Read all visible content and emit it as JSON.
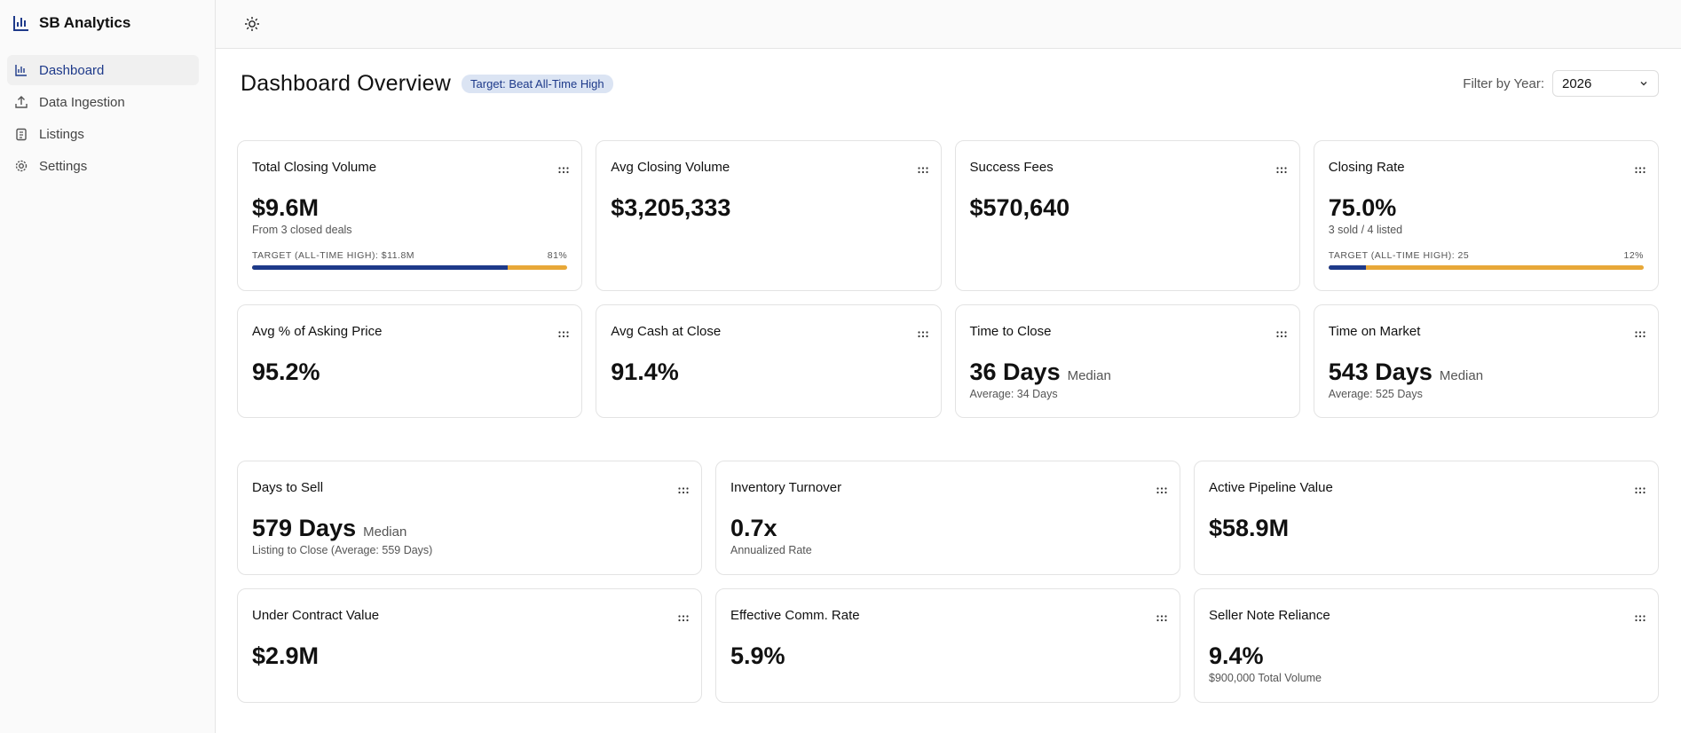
{
  "sidebar": {
    "brand": "SB Analytics",
    "nav": [
      "Dashboard",
      "Data Ingestion",
      "Listings",
      "Settings"
    ]
  },
  "header": {
    "title": "Dashboard Overview",
    "badge": "Target: Beat All-Time High",
    "filter_label": "Filter by Year:",
    "year": "2026"
  },
  "sections": [
    {
      "cards": [
        {
          "title": "Total Closing Volume",
          "value": "$9.6M",
          "sub": "From 3 closed deals",
          "target": "TARGET (ALL-TIME HIGH): $11.8M",
          "progress": 81,
          "progress_label": "81%"
        },
        {
          "title": "Avg Closing Volume",
          "value": "$3,205,333"
        },
        {
          "title": "Success Fees",
          "value": "$570,640"
        },
        {
          "title": "Closing Rate",
          "value": "75.0%",
          "sub": "3 sold / 4 listed",
          "target": "TARGET (ALL-TIME HIGH): 25",
          "progress": 12,
          "progress_label": "12%"
        },
        {
          "title": "Avg % of Asking Price",
          "value": "95.2%"
        },
        {
          "title": "Avg Cash at Close",
          "value": "91.4%"
        },
        {
          "title": "Time to Close",
          "value": "36 Days",
          "unit": "Median",
          "sub": "Average: 34 Days"
        },
        {
          "title": "Time on Market",
          "value": "543 Days",
          "unit": "Median",
          "sub": "Average: 525 Days"
        }
      ]
    },
    {
      "cards": [
        {
          "title": "Days to Sell",
          "value": "579 Days",
          "unit": "Median",
          "sub": "Listing to Close (Average: 559 Days)"
        },
        {
          "title": "Inventory Turnover",
          "value": "0.7x",
          "sub": "Annualized Rate"
        },
        {
          "title": "Active Pipeline Value",
          "value": "$58.9M"
        },
        {
          "title": "Under Contract Value",
          "value": "$2.9M"
        },
        {
          "title": "Effective Comm. Rate",
          "value": "5.9%"
        },
        {
          "title": "Seller Note Reliance",
          "value": "9.4%",
          "sub": "$900,000 Total Volume"
        }
      ]
    }
  ]
}
